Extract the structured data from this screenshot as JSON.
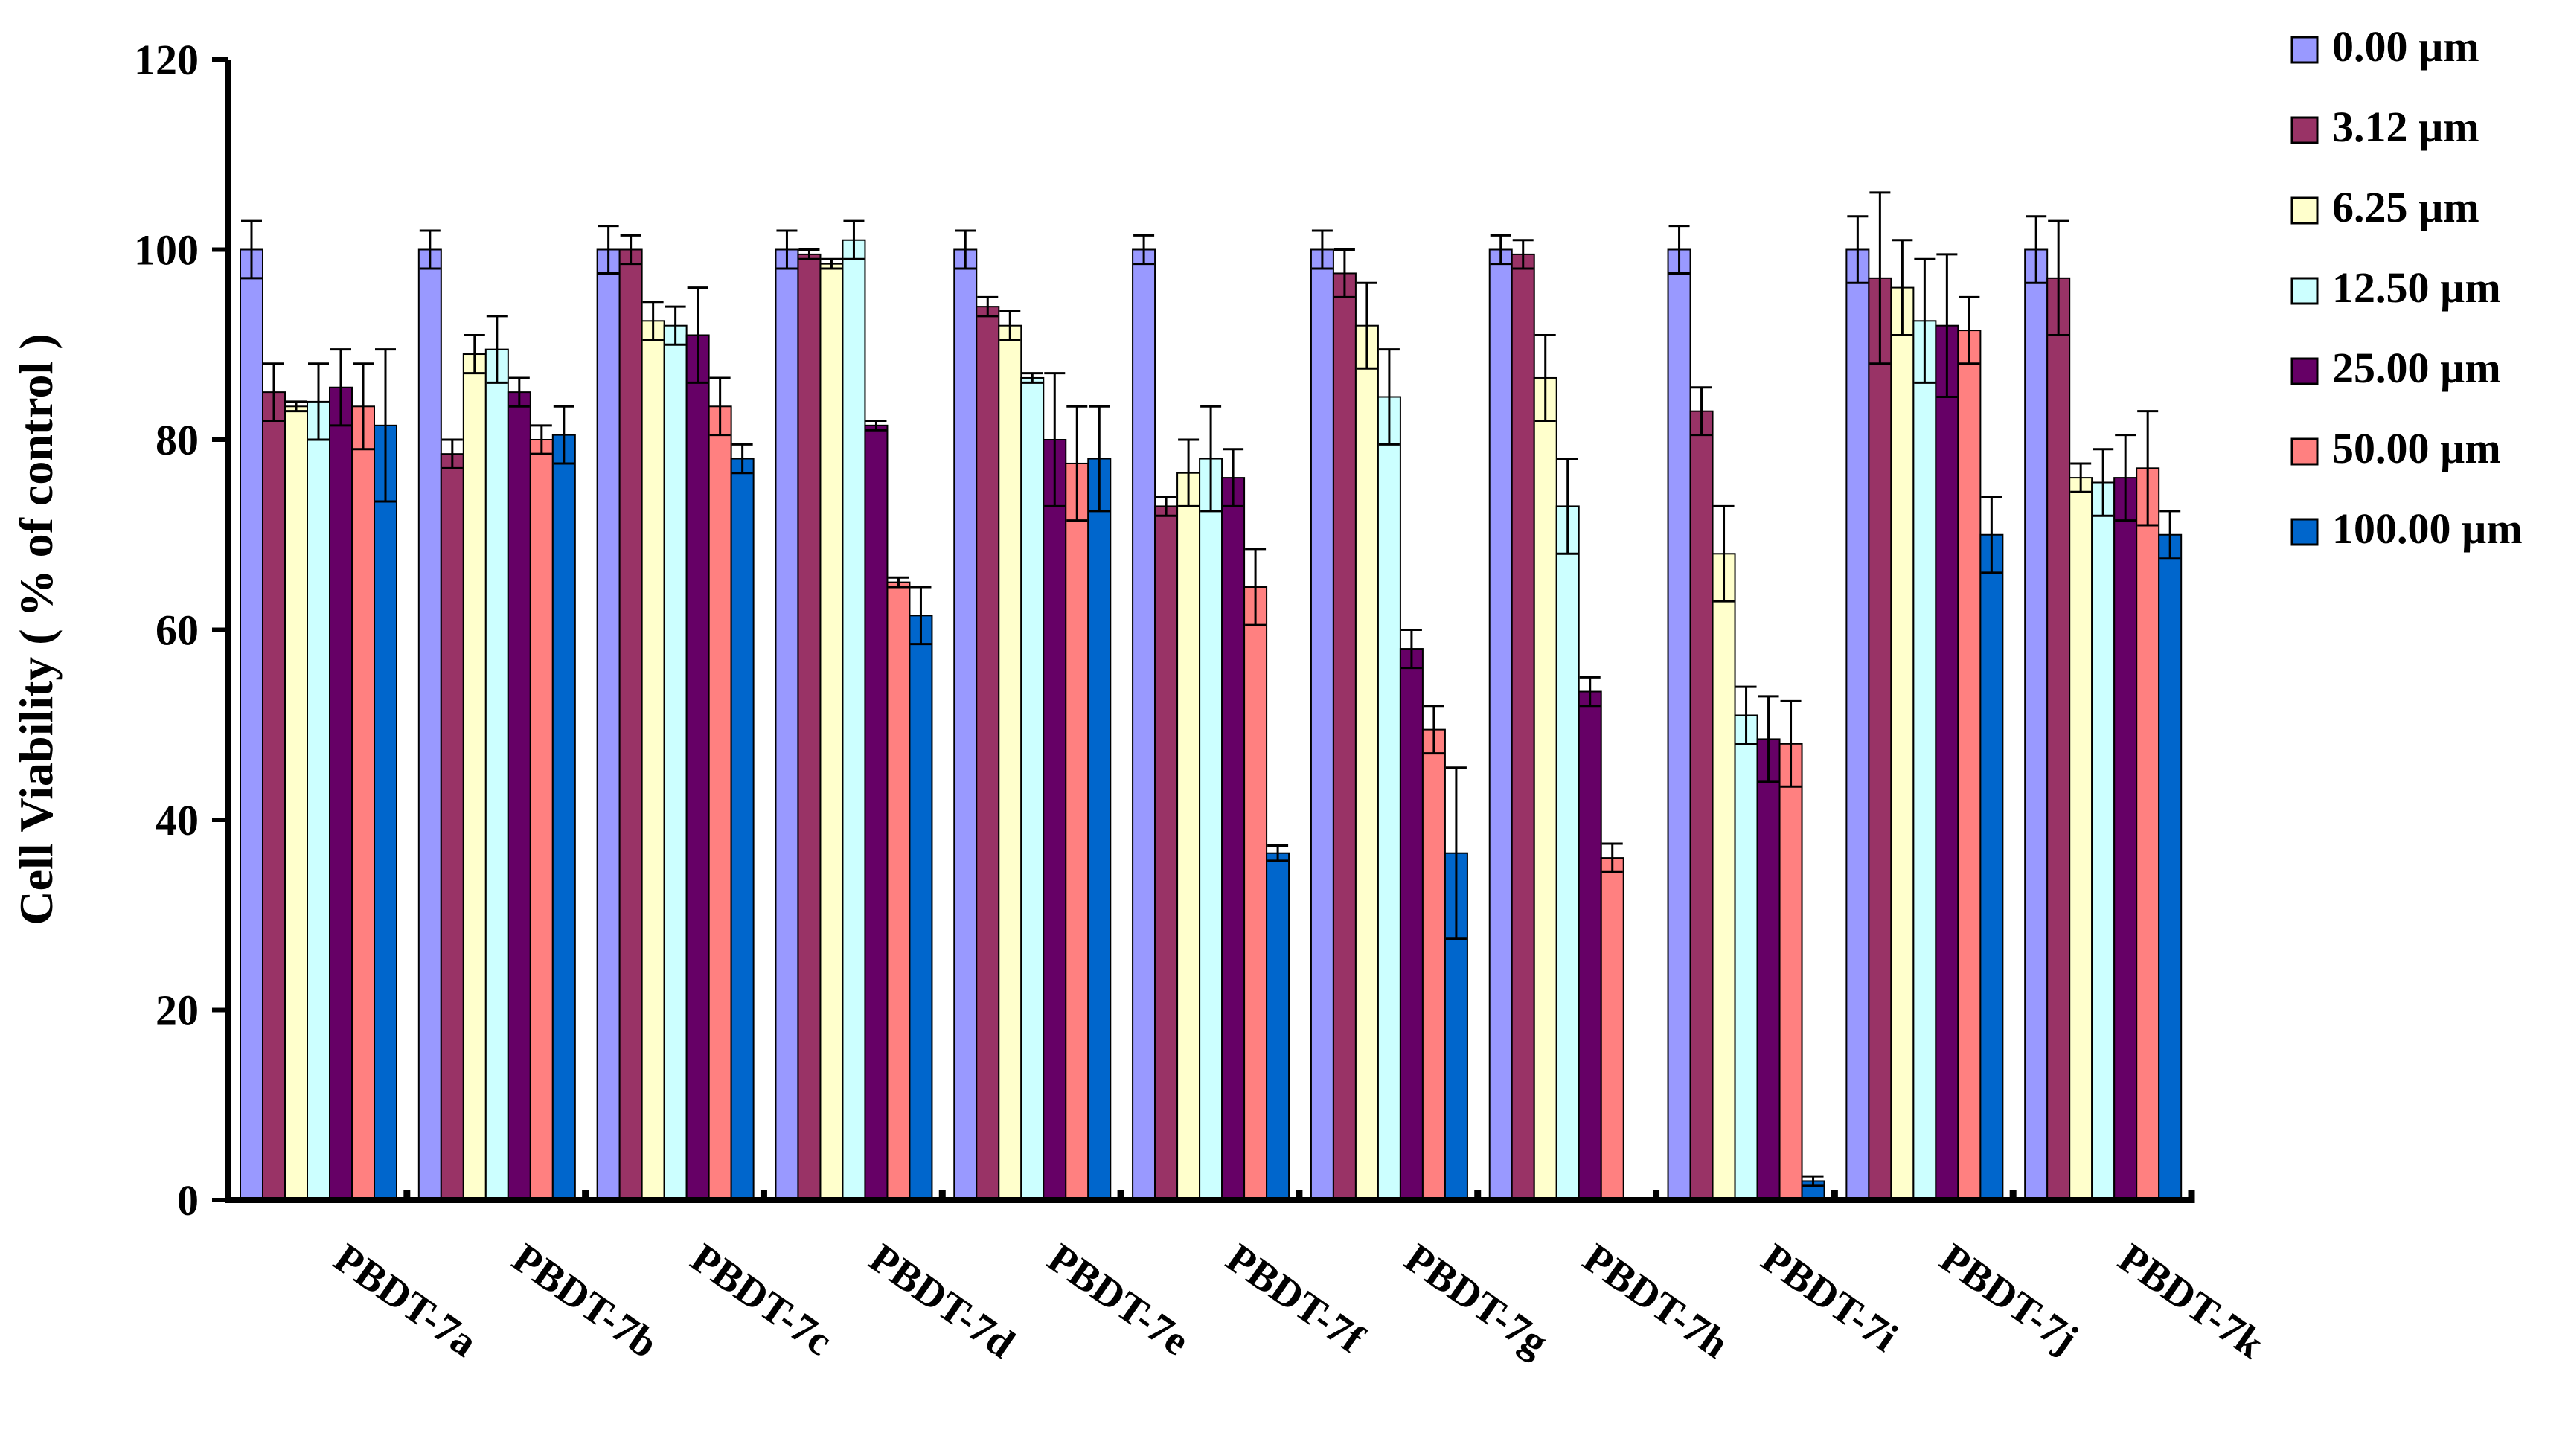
{
  "chart_data": {
    "type": "bar",
    "title": "",
    "xlabel": "",
    "ylabel": "Cell Viability ( % of control )",
    "ylim": [
      0,
      120
    ],
    "yticks": [
      "0",
      "20",
      "40",
      "60",
      "80",
      "100",
      "120"
    ],
    "grid": false,
    "legend_position": "right",
    "categories": [
      "PBDT-7a",
      "PBDT-7b",
      "PBDT-7c",
      "PBDT-7d",
      "PBDT-7e",
      "PBDT-7f",
      "PBDT-7g",
      "PBDT-7h",
      "PBDT-7i",
      "PBDT-7j",
      "PBDT-7k"
    ],
    "series": [
      {
        "name": "0.00 µm",
        "color": "#9999FF",
        "values": [
          100,
          100,
          100,
          100,
          100,
          100,
          100,
          100,
          100,
          100,
          100
        ],
        "errors": [
          3,
          2,
          2.5,
          2,
          2,
          1.5,
          2,
          1.5,
          2.5,
          3.5,
          3.5
        ]
      },
      {
        "name": "3.12 µm",
        "color": "#993366",
        "values": [
          85,
          78.5,
          100,
          99.5,
          94,
          73,
          97.5,
          99.5,
          83,
          97,
          97
        ],
        "errors": [
          3,
          1.5,
          1.5,
          0.5,
          1,
          1,
          2.5,
          1.5,
          2.5,
          9,
          6
        ]
      },
      {
        "name": "6.25 µm",
        "color": "#FFFFCC",
        "values": [
          83.5,
          89,
          92.5,
          98.5,
          92,
          76.5,
          92,
          86.5,
          68,
          96,
          76
        ],
        "errors": [
          0.5,
          2,
          2,
          0.5,
          1.5,
          3.5,
          4.5,
          4.5,
          5,
          5,
          1.5
        ]
      },
      {
        "name": "12.50 µm",
        "color": "#CCFFFF",
        "values": [
          84,
          89.5,
          92,
          101,
          86.5,
          78,
          84.5,
          73,
          51,
          92.5,
          75.5
        ],
        "errors": [
          4,
          3.5,
          2,
          2,
          0.5,
          5.5,
          5,
          5,
          3,
          6.5,
          3.5
        ]
      },
      {
        "name": "25.00 µm",
        "color": "#660066",
        "values": [
          85.5,
          85,
          91,
          81.5,
          80,
          76,
          58,
          53.5,
          48.5,
          92,
          76
        ],
        "errors": [
          4,
          1.5,
          5,
          0.5,
          7,
          3,
          2,
          1.5,
          4.5,
          7.5,
          4.5
        ]
      },
      {
        "name": "50.00 µm",
        "color": "#FF8080",
        "values": [
          83.5,
          80,
          83.5,
          65,
          77.5,
          64.5,
          49.5,
          36,
          48,
          91.5,
          77
        ],
        "errors": [
          4.5,
          1.5,
          3,
          0.5,
          6,
          4,
          2.5,
          1.5,
          4.5,
          3.5,
          6
        ]
      },
      {
        "name": "100.00 µm",
        "color": "#0066CC",
        "values": [
          81.5,
          80.5,
          78,
          61.5,
          78,
          36.5,
          36.5,
          0,
          2,
          70,
          70
        ],
        "errors": [
          8,
          3,
          1.5,
          3,
          5.5,
          0.8,
          9,
          0,
          0.5,
          4,
          2.5
        ]
      }
    ]
  }
}
